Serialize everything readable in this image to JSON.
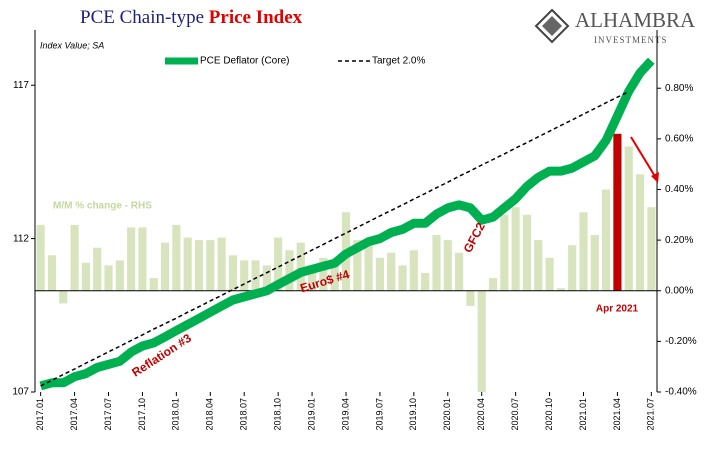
{
  "chart_data": {
    "type": "bar-line",
    "title": "PCE Chain-type",
    "title_emphasis": "Price Index",
    "subtitle": "Index Value; SA",
    "brand": "ALHAMBRA",
    "brand_sub": "INVESTMENTS",
    "categories": [
      "2017.01",
      null,
      null,
      "2017.04",
      null,
      null,
      "2017.07",
      null,
      null,
      "2017.10",
      null,
      null,
      "2018.01",
      null,
      null,
      "2018.04",
      null,
      null,
      "2018.07",
      null,
      null,
      "2018.10",
      null,
      null,
      "2019.01",
      null,
      null,
      "2019.04",
      null,
      null,
      "2019.07",
      null,
      null,
      "2019.10",
      null,
      null,
      "2020.01",
      null,
      null,
      "2020.04",
      null,
      null,
      "2020.07",
      null,
      null,
      "2020.10",
      null,
      null,
      "2021.01",
      null,
      null,
      "2021.04",
      null,
      null,
      "2021.07"
    ],
    "series": [
      {
        "name": "M/M % change - RHS",
        "type": "bar",
        "axis": "y2",
        "color": "#d7e4bd",
        "colors": [
          "#d7e4bd",
          "#d7e4bd",
          "#d7e4bd",
          "#d7e4bd",
          "#d7e4bd",
          "#d7e4bd",
          "#d7e4bd",
          "#d7e4bd",
          "#d7e4bd",
          "#d7e4bd",
          "#d7e4bd",
          "#d7e4bd",
          "#d7e4bd",
          "#d7e4bd",
          "#d7e4bd",
          "#d7e4bd",
          "#d7e4bd",
          "#d7e4bd",
          "#d7e4bd",
          "#d7e4bd",
          "#d7e4bd",
          "#d7e4bd",
          "#d7e4bd",
          "#d7e4bd",
          "#d7e4bd",
          "#d7e4bd",
          "#d7e4bd",
          "#d7e4bd",
          "#d7e4bd",
          "#d7e4bd",
          "#d7e4bd",
          "#d7e4bd",
          "#d7e4bd",
          "#d7e4bd",
          "#d7e4bd",
          "#d7e4bd",
          "#d7e4bd",
          "#d7e4bd",
          "#d7e4bd",
          "#d7e4bd",
          "#d7e4bd",
          "#d7e4bd",
          "#d7e4bd",
          "#d7e4bd",
          "#d7e4bd",
          "#d7e4bd",
          "#d7e4bd",
          "#d7e4bd",
          "#d7e4bd",
          "#d7e4bd",
          "#d7e4bd",
          "#c00000",
          "#d7e4bd",
          "#d7e4bd",
          "#d7e4bd"
        ],
        "values": [
          0.26,
          0.14,
          -0.05,
          0.26,
          0.11,
          0.17,
          0.1,
          0.12,
          0.25,
          0.25,
          0.05,
          0.19,
          0.26,
          0.21,
          0.2,
          0.2,
          0.21,
          0.14,
          0.12,
          0.12,
          0.1,
          0.21,
          0.16,
          0.19,
          0.1,
          0.13,
          0.12,
          0.31,
          0.2,
          0.2,
          0.13,
          0.15,
          0.1,
          0.16,
          0.07,
          0.22,
          0.2,
          0.15,
          -0.06,
          -0.4,
          0.05,
          0.3,
          0.33,
          0.3,
          0.2,
          0.13,
          0.01,
          0.18,
          0.31,
          0.22,
          0.4,
          0.62,
          0.57,
          0.46,
          0.33
        ]
      },
      {
        "name": "PCE Deflator (Core)",
        "type": "line",
        "color": "#00b050",
        "values": [
          107.2,
          107.3,
          107.3,
          107.5,
          107.6,
          107.8,
          107.9,
          108.0,
          108.3,
          108.5,
          108.6,
          108.8,
          109.0,
          109.2,
          109.4,
          109.6,
          109.8,
          110.0,
          110.1,
          110.2,
          110.3,
          110.5,
          110.7,
          110.9,
          111.0,
          111.1,
          111.2,
          111.5,
          111.7,
          111.9,
          112.0,
          112.2,
          112.3,
          112.5,
          112.5,
          112.8,
          113.0,
          113.1,
          113.0,
          112.6,
          112.7,
          113.0,
          113.3,
          113.7,
          114.0,
          114.2,
          114.2,
          114.3,
          114.5,
          114.7,
          115.2,
          116.0,
          116.8,
          117.4,
          117.8
        ]
      },
      {
        "name": "Target 2.0%",
        "type": "dashed",
        "color": "#000000",
        "values": [
          107.2,
          107.38,
          107.57,
          107.75,
          107.94,
          108.12,
          108.31,
          108.49,
          108.68,
          108.86,
          109.05,
          109.23,
          109.41,
          109.6,
          109.78,
          109.97,
          110.15,
          110.34,
          110.52,
          110.71,
          110.89,
          111.07,
          111.26,
          111.44,
          111.63,
          111.81,
          112.0,
          112.18,
          112.37,
          112.55,
          112.74,
          112.92,
          113.1,
          113.29,
          113.47,
          113.66,
          113.84,
          114.03,
          114.21,
          114.4,
          114.58,
          114.76,
          114.95,
          115.13,
          115.32,
          115.5,
          115.69,
          115.87,
          116.06,
          116.24,
          116.43,
          116.61,
          116.79,
          null,
          null
        ]
      }
    ],
    "ylim": [
      107,
      118.8
    ],
    "yticks": [
      107,
      112,
      117
    ],
    "y2lim": [
      -0.4,
      1.03
    ],
    "y2ticks": [
      {
        "value": -0.4,
        "label": "-0.40%"
      },
      {
        "value": -0.2,
        "label": "-0.20%"
      },
      {
        "value": 0,
        "label": "0.00%"
      },
      {
        "value": 0.2,
        "label": "0.20%"
      },
      {
        "value": 0.4,
        "label": "0.40%"
      },
      {
        "value": 0.6,
        "label": "0.60%"
      },
      {
        "value": 0.8,
        "label": "0.80%"
      }
    ],
    "annotations": [
      "Reflation #3",
      "Euro$ #4",
      "GFC2",
      "Apr 2021"
    ]
  }
}
